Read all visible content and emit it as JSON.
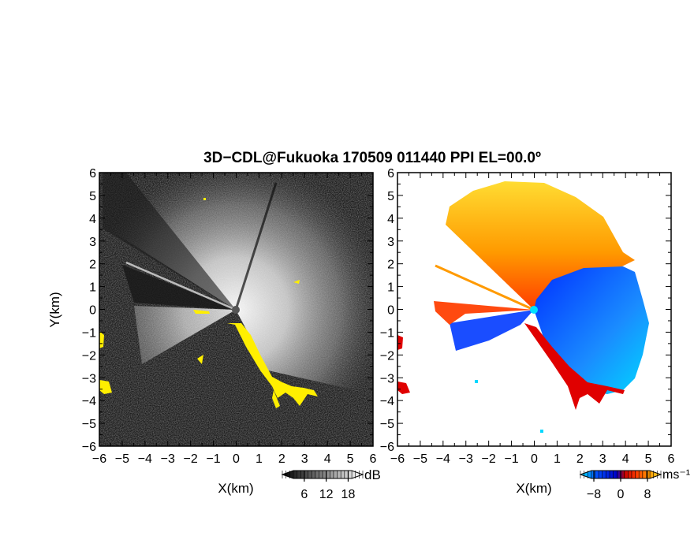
{
  "title": "3D−CDL@Fukuoka 170509 011440 PPI EL=00.0º",
  "chart_data": [
    {
      "type": "heatmap",
      "panel": "reflectivity",
      "xlabel": "X(km)",
      "ylabel": "Y(km)",
      "xlim": [
        -6,
        6
      ],
      "ylim": [
        -6,
        6
      ],
      "x_ticks": [
        "−6",
        "−5",
        "−4",
        "−3",
        "−2",
        "−1",
        "0",
        "1",
        "2",
        "3",
        "4",
        "5",
        "6"
      ],
      "y_ticks": [
        "−6",
        "−5",
        "−4",
        "−3",
        "−2",
        "−1",
        "0",
        "1",
        "2",
        "3",
        "4",
        "5",
        "6"
      ],
      "colorbar": {
        "unit": "dB",
        "ticks": [
          {
            "value": 6,
            "label": "6"
          },
          {
            "value": 12,
            "label": "12"
          },
          {
            "value": 18,
            "label": "18"
          }
        ],
        "range": [
          0,
          22
        ],
        "colors": [
          "#000000",
          "#ffffff"
        ]
      },
      "colors": {
        "background": "#1a1a1a",
        "echo": "#ffffff",
        "clutter": "#ffef00"
      }
    },
    {
      "type": "heatmap",
      "panel": "doppler-velocity",
      "xlabel": "X(km)",
      "ylabel": "",
      "xlim": [
        -6,
        6
      ],
      "ylim": [
        -6,
        6
      ],
      "x_ticks": [
        "−6",
        "−5",
        "−4",
        "−3",
        "−2",
        "−1",
        "0",
        "1",
        "2",
        "3",
        "4",
        "5",
        "6"
      ],
      "y_ticks": [
        "−6",
        "−5",
        "−4",
        "−3",
        "−2",
        "−1",
        "0",
        "1",
        "2",
        "3",
        "4",
        "5",
        "6"
      ],
      "colorbar": {
        "unit": "ms⁻¹",
        "ticks": [
          {
            "value": -8,
            "label": "−8"
          },
          {
            "value": 0,
            "label": "0"
          },
          {
            "value": 8,
            "label": "8"
          }
        ],
        "range": [
          -12,
          12
        ],
        "colors": [
          "#00e5ff",
          "#0050ff",
          "#0000c8",
          "#c80000",
          "#ff3c00",
          "#ff9600",
          "#ffdc32"
        ]
      },
      "colors": {
        "background": "#ffffff",
        "approaching": "#0040ff",
        "receding": "#ff6000"
      }
    }
  ]
}
